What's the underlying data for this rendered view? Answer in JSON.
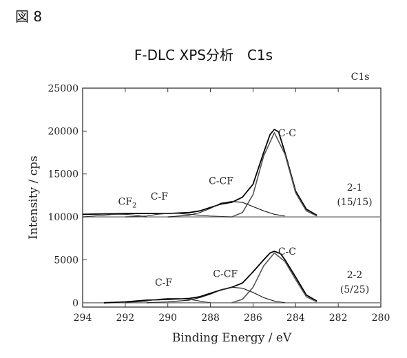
{
  "figure_label": "図 8",
  "title": "F-DLC XPS分析　C1s",
  "chart_data": {
    "type": "line",
    "xlabel": "Binding Energy / eV",
    "ylabel": "Intensity / cps",
    "xlim": [
      294,
      280
    ],
    "ylim": [
      -500,
      25000
    ],
    "x_ticks": [
      294,
      292,
      290,
      288,
      286,
      284,
      282,
      280
    ],
    "y_ticks": [
      0,
      5000,
      10000,
      15000,
      20000,
      25000
    ],
    "corner_label": "C1s",
    "panels": [
      {
        "id": "2-1",
        "labels": [
          "2-1",
          "(15/15)"
        ],
        "baseline": 10000,
        "peak_labels": [
          {
            "text": "CF",
            "sub": "2",
            "x": 291.9,
            "y": 11400
          },
          {
            "text": "C-F",
            "x": 290.4,
            "y": 12000
          },
          {
            "text": "C-CF",
            "x": 287.5,
            "y": 13800
          },
          {
            "text": "C-C",
            "x": 284.4,
            "y": 19400
          }
        ],
        "series": [
          {
            "name": "total",
            "x": [
              294,
              292,
              290,
              289,
              288.5,
              288,
              287.5,
              287,
              286.5,
              286,
              285.5,
              285.2,
              285,
              284.8,
              284.5,
              284,
              283.5,
              283
            ],
            "y": [
              10300,
              10400,
              10400,
              10500,
              10700,
              11100,
              11500,
              11700,
              12300,
              13800,
              17500,
              19600,
              20200,
              19900,
              17500,
              13000,
              10900,
              10200
            ]
          },
          {
            "name": "C-C",
            "x": [
              287,
              286.5,
              286,
              285.5,
              285,
              284.5,
              284,
              283.5,
              283
            ],
            "y": [
              10000,
              10500,
              12600,
              17100,
              19800,
              17300,
              12800,
              10700,
              10100
            ]
          },
          {
            "name": "C-CF",
            "x": [
              290,
              289,
              288.5,
              288,
              287.5,
              287,
              286.5,
              286,
              285.5,
              285,
              284.5
            ],
            "y": [
              10000,
              10200,
              10500,
              11000,
              11600,
              11800,
              11700,
              11200,
              10700,
              10300,
              10100
            ]
          },
          {
            "name": "C-F",
            "x": [
              292,
              291,
              290.5,
              290,
              289.5,
              289,
              288,
              287
            ],
            "y": [
              10000,
              10100,
              10300,
              10400,
              10400,
              10300,
              10100,
              10000
            ]
          },
          {
            "name": "CF2",
            "x": [
              294,
              293,
              292.5,
              292,
              291.5,
              291
            ],
            "y": [
              10000,
              10200,
              10300,
              10300,
              10200,
              10000
            ]
          }
        ]
      },
      {
        "id": "2-2",
        "labels": [
          "2-2",
          "(5/25)"
        ],
        "baseline": 0,
        "peak_labels": [
          {
            "text": "C-F",
            "x": 290.2,
            "y": 2000
          },
          {
            "text": "C-CF",
            "x": 287.3,
            "y": 3000
          },
          {
            "text": "C-C",
            "x": 284.4,
            "y": 5600
          }
        ],
        "series": [
          {
            "name": "total",
            "x": [
              293,
              292,
              291,
              290,
              289,
              288.5,
              288,
              287.5,
              287,
              286.5,
              286,
              285.5,
              285.2,
              285,
              284.7,
              284.5,
              284,
              283.5,
              283
            ],
            "y": [
              0,
              100,
              300,
              400,
              500,
              700,
              1100,
              1500,
              1800,
              2300,
              3600,
              5000,
              5800,
              6000,
              5700,
              5000,
              3000,
              900,
              200
            ]
          },
          {
            "name": "C-C",
            "x": [
              287,
              286.5,
              286,
              285.5,
              285,
              284.5,
              284,
              283.5,
              283
            ],
            "y": [
              0,
              400,
              1800,
              4300,
              5800,
              4800,
              2700,
              700,
              100
            ]
          },
          {
            "name": "C-CF",
            "x": [
              291,
              290,
              289,
              288.5,
              288,
              287.5,
              287,
              286.5,
              286,
              285.5,
              285,
              284.5
            ],
            "y": [
              0,
              100,
              300,
              600,
              1000,
              1500,
              1800,
              1700,
              1200,
              600,
              200,
              0
            ]
          },
          {
            "name": "C-F",
            "x": [
              292,
              291,
              290.5,
              290,
              289.5,
              289,
              288.5,
              288
            ],
            "y": [
              0,
              200,
              400,
              500,
              500,
              400,
              200,
              0
            ]
          }
        ]
      }
    ]
  }
}
